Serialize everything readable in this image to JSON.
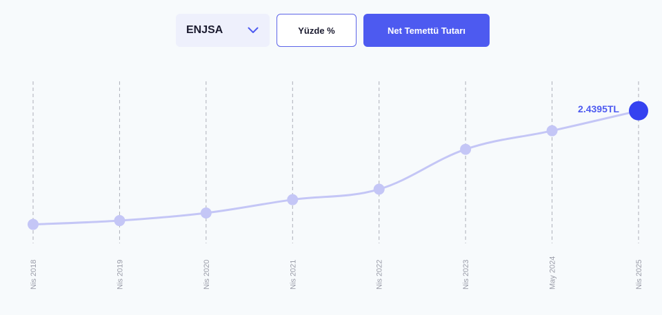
{
  "controls": {
    "ticker_select": {
      "selected": "ENJSA"
    },
    "percent_button": "Yüzde %",
    "amount_button": "Net Temettü Tutarı"
  },
  "colors": {
    "accent": "#4d5af0",
    "line": "#c4c6f6",
    "point": "#c4c6f6",
    "highlight_point": "#3542f0",
    "grid": "#9a9ca8"
  },
  "chart_data": {
    "type": "line",
    "categories": [
      "Nis 2018",
      "Nis 2019",
      "Nis 2020",
      "Nis 2021",
      "Nis 2022",
      "Nis 2023",
      "May 2024",
      "Nis 2025"
    ],
    "series": [
      {
        "values": [
          0.05,
          0.13,
          0.29,
          0.57,
          0.79,
          1.63,
          2.02,
          2.4395
        ]
      }
    ],
    "last_value_label": "2.4395TL",
    "ylim": [
      0,
      2.45
    ],
    "grid": "vertical-dashed"
  }
}
